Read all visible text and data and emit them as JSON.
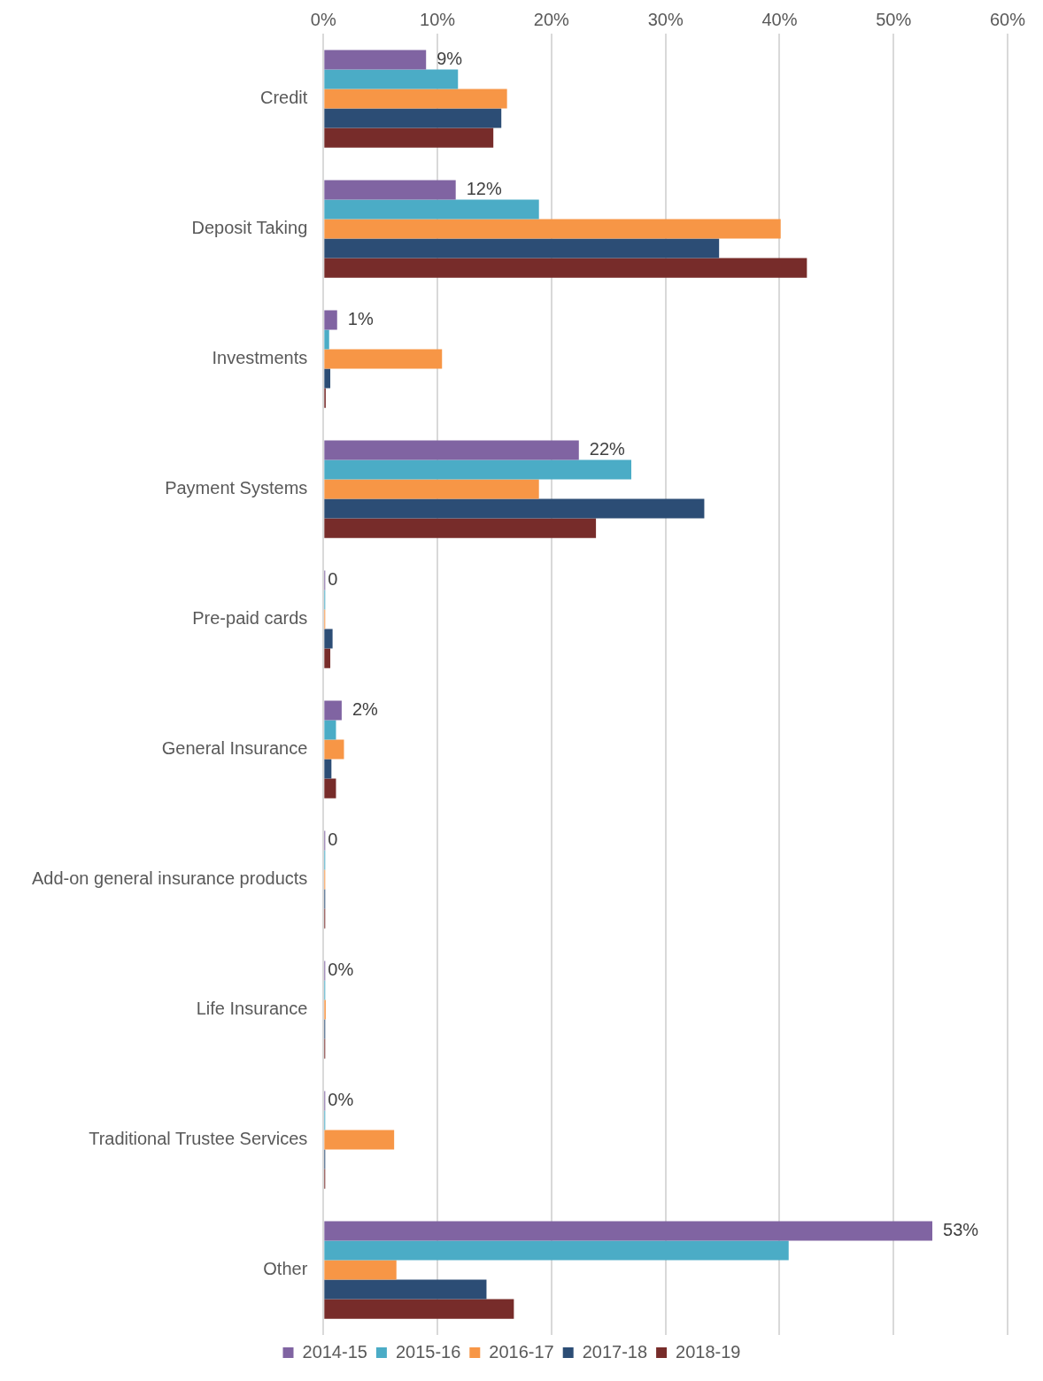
{
  "chart_data": {
    "type": "bar",
    "orientation": "horizontal",
    "categories": [
      "Credit",
      "Deposit Taking",
      "Investments",
      "Payment Systems",
      "Pre-paid cards",
      "General Insurance",
      "Add-on general insurance products",
      "Life Insurance",
      "Traditional Trustee Services",
      "Other"
    ],
    "series": [
      {
        "name": "2014-15",
        "color": "#8064a2",
        "values": [
          9.0,
          11.6,
          1.2,
          22.4,
          0,
          1.6,
          0,
          0,
          0,
          53.4
        ],
        "value_labels": [
          "9%",
          "12%",
          "1%",
          "22%",
          "0",
          "2%",
          "0",
          "0%",
          "0%",
          "53%"
        ]
      },
      {
        "name": "2015-16",
        "color": "#4bacc6",
        "values": [
          11.8,
          18.9,
          0.5,
          27.0,
          0,
          1.1,
          0,
          0,
          0,
          40.8
        ]
      },
      {
        "name": "2016-17",
        "color": "#f79646",
        "values": [
          16.1,
          40.1,
          10.4,
          18.9,
          0,
          1.8,
          0,
          0.2,
          6.2,
          6.4
        ]
      },
      {
        "name": "2017-18",
        "color": "#2c4d75",
        "values": [
          15.6,
          34.7,
          0.6,
          33.4,
          0.8,
          0.7,
          0.1,
          0,
          0.1,
          14.3
        ]
      },
      {
        "name": "2018-19",
        "color": "#772c2a",
        "values": [
          14.9,
          42.4,
          0.2,
          23.9,
          0.6,
          1.1,
          0,
          0,
          0,
          16.7
        ]
      }
    ],
    "xlim": [
      0,
      60
    ],
    "xticks": [
      {
        "value": 0,
        "label": "0%"
      },
      {
        "value": 10,
        "label": "10%"
      },
      {
        "value": 20,
        "label": "20%"
      },
      {
        "value": 30,
        "label": "30%"
      },
      {
        "value": 40,
        "label": "40%"
      },
      {
        "value": 50,
        "label": "50%"
      },
      {
        "value": 60,
        "label": "60%"
      }
    ],
    "grid": "x",
    "legend": "bottom"
  }
}
